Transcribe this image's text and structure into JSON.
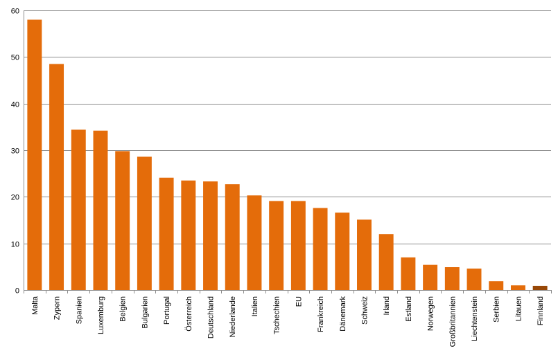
{
  "chart_data": {
    "type": "bar",
    "categories": [
      "Malta",
      "Zypern",
      "Spanien",
      "Luxemburg",
      "Belgien",
      "Bulgarien",
      "Portugal",
      "Österreich",
      "Deutschland",
      "Niederlande",
      "Italien",
      "Tschechien",
      "EU",
      "Frankreich",
      "Dänemark",
      "Schweiz",
      "Irland",
      "Estland",
      "Norwegen",
      "Großbritannien",
      "Liechtenstein",
      "Serbien",
      "Litauen",
      "Finnland"
    ],
    "values": [
      58.0,
      48.5,
      34.4,
      34.2,
      29.8,
      28.6,
      24.1,
      23.5,
      23.3,
      22.7,
      20.3,
      19.1,
      19.1,
      17.6,
      16.6,
      15.1,
      12.0,
      7.0,
      5.4,
      4.9,
      4.6,
      1.9,
      1.0,
      0.9
    ],
    "highlight_category": "Finnland",
    "ylim": [
      0,
      60
    ],
    "yticks": [
      0,
      10,
      20,
      30,
      40,
      50,
      60
    ],
    "grid": true,
    "colors": {
      "bar": "#e46c0a",
      "highlight": "#984807",
      "grid": "#8c8c8c"
    }
  }
}
